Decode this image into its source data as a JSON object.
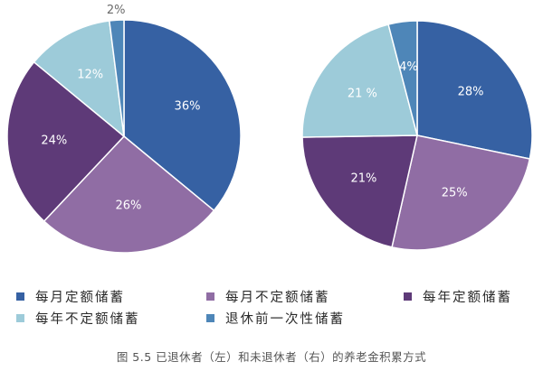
{
  "chart_data": [
    {
      "type": "pie",
      "title": "",
      "slices": [
        {
          "label": "每月定额储蓄",
          "value": 36,
          "text": "36%",
          "color": "#3661a3"
        },
        {
          "label": "每月不定额储蓄",
          "value": 26,
          "text": "26%",
          "color": "#906da4"
        },
        {
          "label": "每年定额储蓄",
          "value": 24,
          "text": "24%",
          "color": "#5e3a78"
        },
        {
          "label": "每年不定额储蓄",
          "value": 12,
          "text": "12%",
          "color": "#9dcbd9"
        },
        {
          "label": "退休前一次性储蓄",
          "value": 2,
          "text": "2%",
          "color": "#4e86b8"
        }
      ]
    },
    {
      "type": "pie",
      "title": "",
      "slices": [
        {
          "label": "每月定额储蓄",
          "value": 28,
          "text": "28%",
          "color": "#3661a3"
        },
        {
          "label": "每月不定额储蓄",
          "value": 25,
          "text": "25%",
          "color": "#906da4"
        },
        {
          "label": "每年定额储蓄",
          "value": 21,
          "text": "21%",
          "color": "#5e3a78"
        },
        {
          "label": "每年不定额储蓄",
          "value": 21,
          "text": "21 %",
          "color": "#9dcbd9"
        },
        {
          "label": "退休前一次性储蓄",
          "value": 4,
          "text": "4%",
          "color": "#4e86b8"
        }
      ]
    }
  ],
  "legend": {
    "placement": "bottom",
    "items": [
      {
        "label": "每月定额储蓄",
        "color": "#3661a3"
      },
      {
        "label": "每月不定额储蓄",
        "color": "#906da4"
      },
      {
        "label": "每年定额储蓄",
        "color": "#5e3a78"
      },
      {
        "label": "每年不定额储蓄",
        "color": "#9dcbd9"
      },
      {
        "label": "退休前一次性储蓄",
        "color": "#4e86b8"
      }
    ]
  },
  "caption": "图 5.5 已退休者（左）和未退休者（右）的养老金积累方式"
}
